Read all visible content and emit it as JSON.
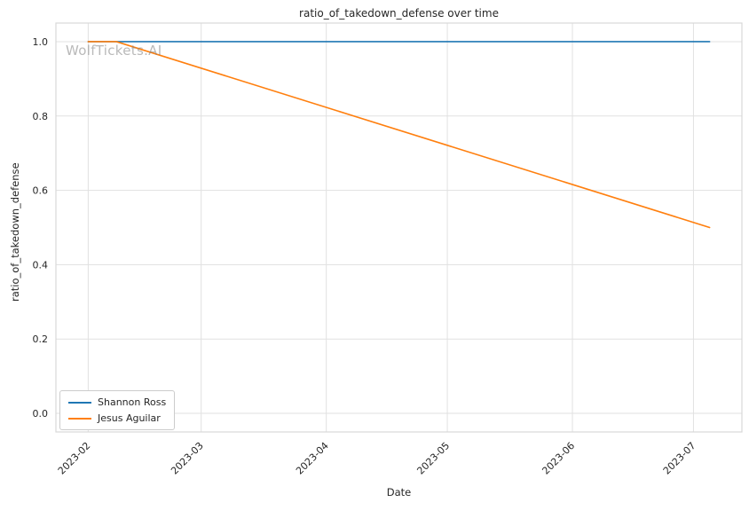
{
  "chart_data": {
    "type": "line",
    "title": "ratio_of_takedown_defense over time",
    "xlabel": "Date",
    "ylabel": "ratio_of_takedown_defense",
    "watermark": "WolfTickets.AI",
    "legend_position": "lower left",
    "grid": true,
    "ylim": [
      -0.05,
      1.05
    ],
    "x_range": [
      "2023-01-24",
      "2023-07-13"
    ],
    "y_ticks": [
      0.0,
      0.2,
      0.4,
      0.6,
      0.8,
      1.0
    ],
    "x_ticks": [
      {
        "date": "2023-02-01",
        "label": "2023-02"
      },
      {
        "date": "2023-03-01",
        "label": "2023-03"
      },
      {
        "date": "2023-04-01",
        "label": "2023-04"
      },
      {
        "date": "2023-05-01",
        "label": "2023-05"
      },
      {
        "date": "2023-06-01",
        "label": "2023-06"
      },
      {
        "date": "2023-07-01",
        "label": "2023-07"
      }
    ],
    "series": [
      {
        "name": "Shannon Ross",
        "color": "#1f77b4",
        "points": [
          {
            "date": "2023-02-01",
            "value": 1.0
          },
          {
            "date": "2023-07-05",
            "value": 1.0
          }
        ]
      },
      {
        "name": "Jesus Aguilar",
        "color": "#ff7f0e",
        "points": [
          {
            "date": "2023-02-01",
            "value": 1.0
          },
          {
            "date": "2023-02-08",
            "value": 1.0
          },
          {
            "date": "2023-07-05",
            "value": 0.5
          }
        ]
      }
    ]
  }
}
